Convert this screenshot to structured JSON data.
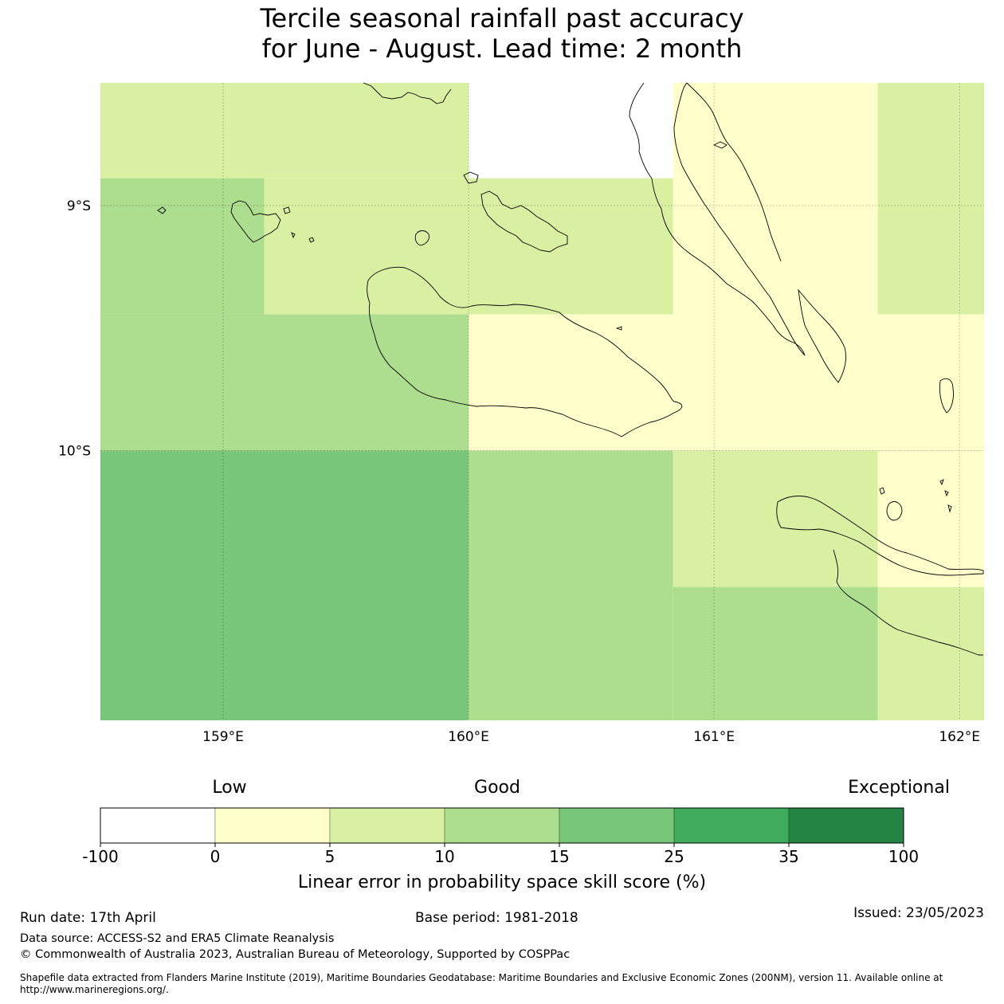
{
  "title": {
    "line1": "Tercile seasonal rainfall past accuracy",
    "line2": "for June - August. Lead time: 2 month"
  },
  "map": {
    "lon_range": [
      158.5,
      162.1
    ],
    "lat_range": [
      -8.5,
      -11.1
    ],
    "lon_ticks": [
      {
        "value": 159,
        "label": "159°E"
      },
      {
        "value": 160,
        "label": "160°E"
      },
      {
        "value": 161,
        "label": "161°E"
      },
      {
        "value": 162,
        "label": "162°E"
      }
    ],
    "lat_ticks": [
      {
        "value": -9,
        "label": "9°S"
      },
      {
        "value": -10,
        "label": "10°S"
      }
    ],
    "grid": true,
    "cells": [
      {
        "lon": [
          158.5,
          160.0
        ],
        "lat": [
          -8.5,
          -8.889
        ],
        "category": "5-10"
      },
      {
        "lon": [
          158.5,
          159.167
        ],
        "lat": [
          -8.889,
          -9.444
        ],
        "category": "10-15"
      },
      {
        "lon": [
          159.167,
          160.0
        ],
        "lat": [
          -8.889,
          -9.444
        ],
        "category": "5-10"
      },
      {
        "lon": [
          160.0,
          160.833
        ],
        "lat": [
          -8.5,
          -8.889
        ],
        "category": "-100-0"
      },
      {
        "lon": [
          160.0,
          160.833
        ],
        "lat": [
          -8.889,
          -9.444
        ],
        "category": "5-10"
      },
      {
        "lon": [
          160.833,
          161.667
        ],
        "lat": [
          -8.5,
          -9.444
        ],
        "category": "0-5"
      },
      {
        "lon": [
          161.667,
          162.1
        ],
        "lat": [
          -8.5,
          -9.444
        ],
        "category": "5-10"
      },
      {
        "lon": [
          158.5,
          160.0
        ],
        "lat": [
          -9.444,
          -10.0
        ],
        "category": "10-15"
      },
      {
        "lon": [
          160.0,
          162.1
        ],
        "lat": [
          -9.444,
          -10.0
        ],
        "category": "0-5"
      },
      {
        "lon": [
          158.5,
          160.0
        ],
        "lat": [
          -10.0,
          -11.1
        ],
        "category": "15-25"
      },
      {
        "lon": [
          160.0,
          160.833
        ],
        "lat": [
          -10.0,
          -11.1
        ],
        "category": "10-15"
      },
      {
        "lon": [
          160.833,
          161.667
        ],
        "lat": [
          -10.0,
          -10.556
        ],
        "category": "5-10"
      },
      {
        "lon": [
          160.833,
          161.667
        ],
        "lat": [
          -10.556,
          -11.1
        ],
        "category": "10-15"
      },
      {
        "lon": [
          161.667,
          162.1
        ],
        "lat": [
          -10.0,
          -10.556
        ],
        "category": "0-5"
      },
      {
        "lon": [
          161.667,
          162.1
        ],
        "lat": [
          -10.556,
          -11.1
        ],
        "category": "5-10"
      }
    ]
  },
  "colorbar": {
    "headings": {
      "low": "Low",
      "good": "Good",
      "exceptional": "Exceptional"
    },
    "bins": [
      {
        "id": "-100-0",
        "color": "#ffffff"
      },
      {
        "id": "0-5",
        "color": "#ffffcc"
      },
      {
        "id": "5-10",
        "color": "#d9f0a3"
      },
      {
        "id": "10-15",
        "color": "#addd8e"
      },
      {
        "id": "15-25",
        "color": "#78c679"
      },
      {
        "id": "25-35",
        "color": "#41ab5d"
      },
      {
        "id": "35-100",
        "color": "#238443"
      }
    ],
    "tick_labels": [
      "-100",
      "0",
      "5",
      "10",
      "15",
      "25",
      "35",
      "100"
    ],
    "label": "Linear error in probability space skill score (%)"
  },
  "footer": {
    "run_date": "Run date: 17th April",
    "base_period": "Base period: 1981-2018",
    "issued": "Issued: 23/05/2023",
    "data_source": "Data source: ACCESS-S2 and ERA5 Climate Reanalysis",
    "copyright": "© Commonwealth of Australia 2023, Australian Bureau of Meteorology, Supported by COSPPac",
    "shapefile": "Shapefile data extracted from Flanders Marine Institute (2019), Maritime Boundaries Geodatabase: Maritime Boundaries and Exclusive Economic Zones (200NM), version 11. Available online at http://www.marineregions.org/."
  }
}
